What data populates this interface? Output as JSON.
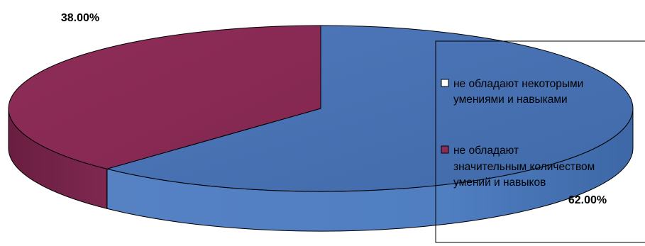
{
  "chart_data": {
    "type": "pie",
    "style": "3d",
    "categories": [
      "не обладают некоторыми умениями и навыками",
      "не обладают значительным количеством умений и навыков"
    ],
    "values": [
      62.0,
      38.0
    ],
    "value_labels": [
      "62.00%",
      "38.00%"
    ],
    "colors": [
      "#4a72b4",
      "#8c2c56"
    ],
    "legend": {
      "placement": "right",
      "entries": [
        {
          "lines": [
            "не обладают некоторыми",
            "умениями и навыками"
          ]
        },
        {
          "lines": [
            "не обладают",
            "значительным количеством",
            "умений и навыков"
          ]
        }
      ]
    }
  }
}
